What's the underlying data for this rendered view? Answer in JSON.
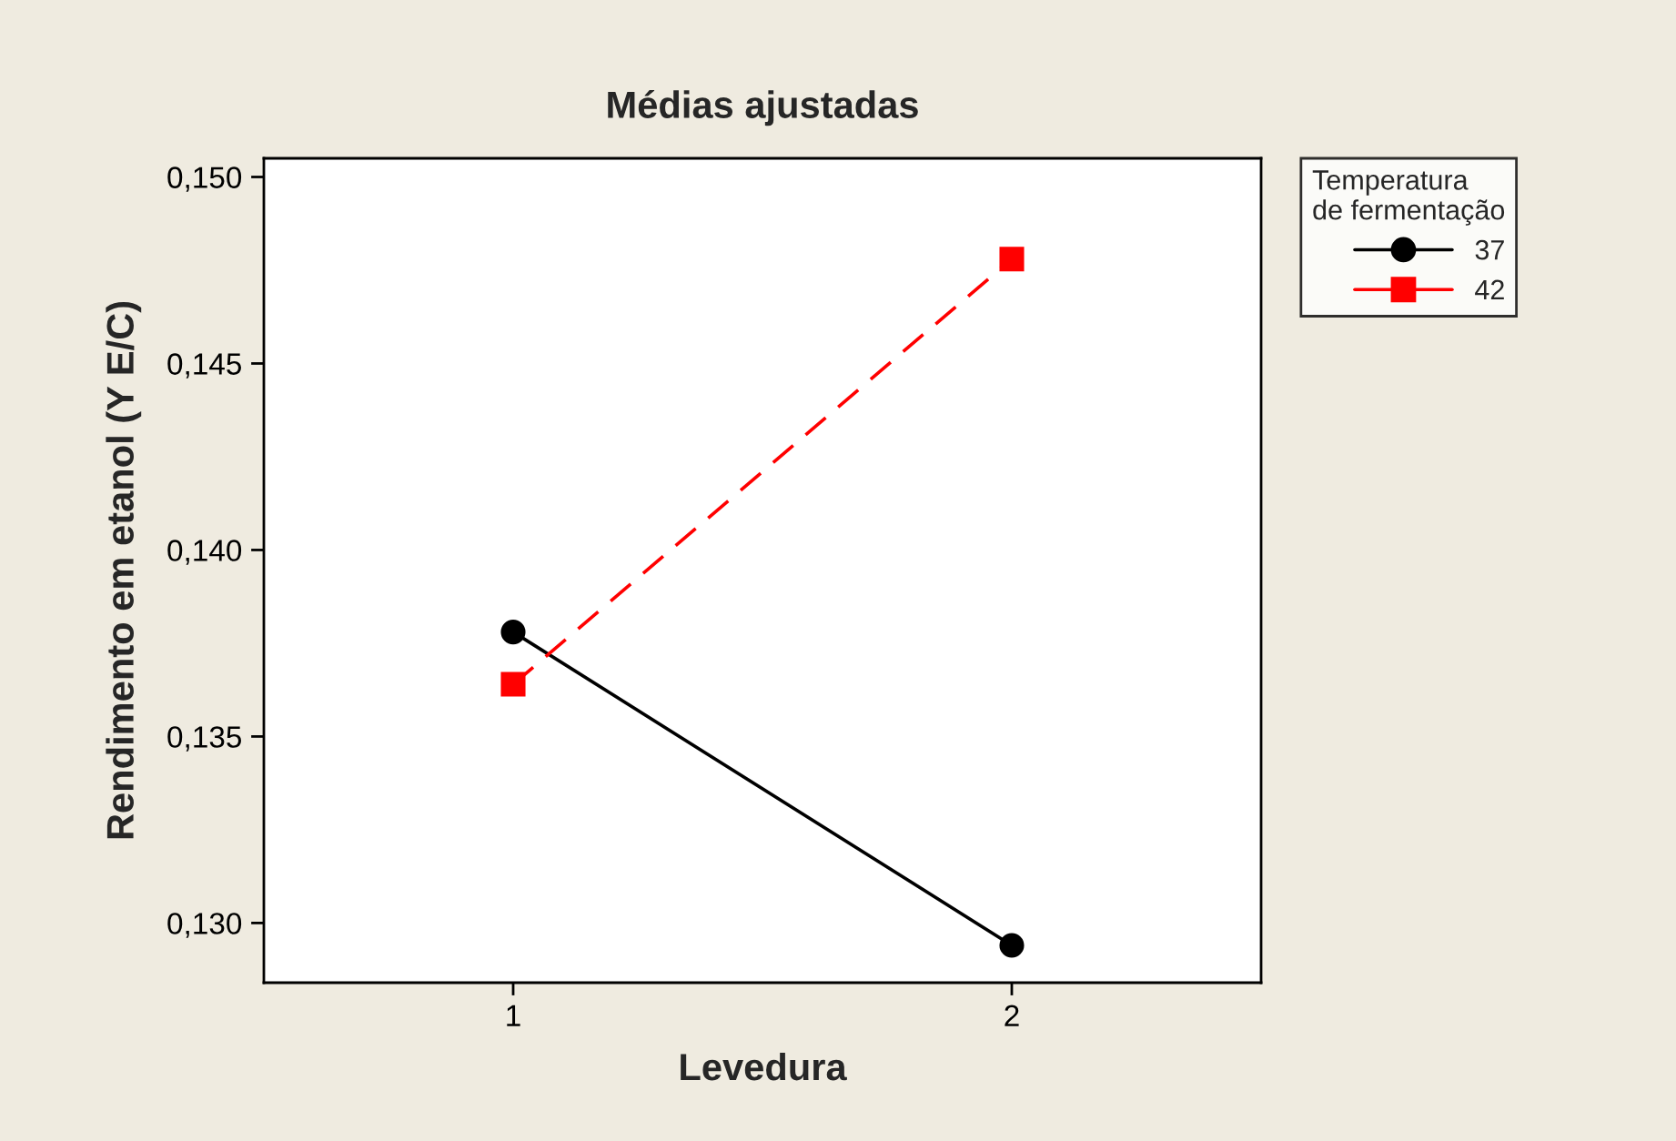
{
  "chart_data": {
    "type": "line",
    "title": "Médias ajustadas",
    "xlabel": "Levedura",
    "ylabel": "Rendimento em etanol (Y E/C)",
    "legend_title": "Temperatura\nde fermentação",
    "x": [
      1,
      2
    ],
    "xlim": [
      0.5,
      2.5
    ],
    "xticks": [
      1,
      2
    ],
    "ylim": [
      0.1284,
      0.1505
    ],
    "yticks": [
      {
        "value": 0.13,
        "label": "0,130"
      },
      {
        "value": 0.135,
        "label": "0,135"
      },
      {
        "value": 0.14,
        "label": "0,140"
      },
      {
        "value": 0.145,
        "label": "0,145"
      },
      {
        "value": 0.15,
        "label": "0,150"
      }
    ],
    "series": [
      {
        "name": "37",
        "color": "#000000",
        "values": [
          0.1378,
          0.1294
        ],
        "marker": "circle",
        "line_style": "solid"
      },
      {
        "name": "42",
        "color": "#ff0000",
        "values": [
          0.1364,
          0.1478
        ],
        "marker": "square",
        "line_style": "dashed"
      }
    ],
    "grid": false,
    "legend": "top right"
  }
}
